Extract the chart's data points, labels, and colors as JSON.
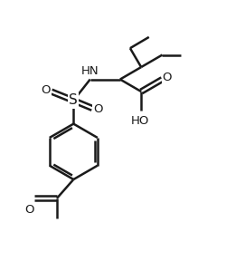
{
  "bg_color": "#ffffff",
  "line_color": "#1a1a1a",
  "line_width": 1.8,
  "figsize": [
    2.51,
    2.88
  ],
  "dpi": 100,
  "xlim": [
    0,
    10
  ],
  "ylim": [
    0,
    11.5
  ]
}
